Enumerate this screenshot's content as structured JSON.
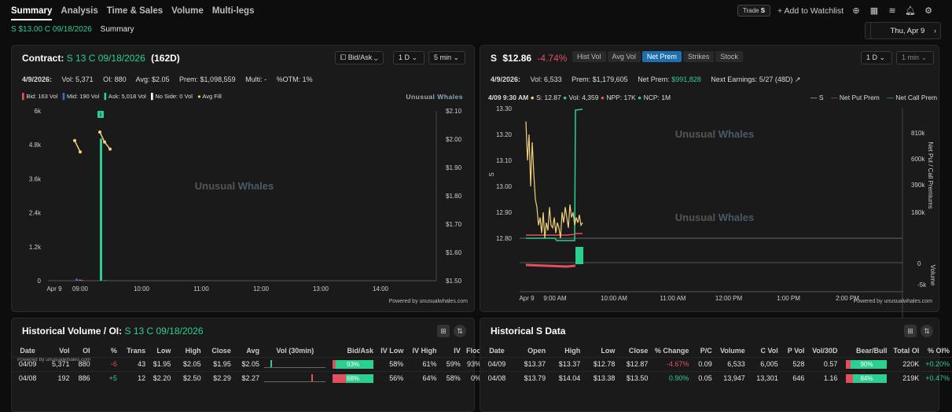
{
  "nav": {
    "tabs": [
      "Summary",
      "Analysis",
      "Time & Sales",
      "Volume",
      "Multi-legs"
    ],
    "trade_label": "Trade",
    "trade_ticker": "S",
    "watchlist": "+ Add to Watchlist"
  },
  "sub": {
    "ticker": "S $13.00 C 09/18/2026",
    "label": "Summary",
    "date": "Thu, Apr 9"
  },
  "contract": {
    "title_label": "Contract:",
    "title_contract": "S 13 C 09/18/2026",
    "title_dte": "(162D)",
    "selects": [
      "Bid/Ask",
      "1 D",
      "5 min"
    ],
    "stats": {
      "date": "4/9/2026:",
      "vol": "Vol: 5,371",
      "oi": "OI: 880",
      "avg": "Avg: $2.05",
      "prem": "Prem: $1,098,559",
      "multi": "Multi: -",
      "otm": "%OTM: 1%"
    },
    "legend": [
      "Bid: 163 Vol",
      "Mid: 190 Vol",
      "Ask: 5,018 Vol",
      "No Side: 0 Vol",
      "Avg Fill"
    ],
    "brand": "Unusual Whales",
    "powered": "Powered by unusualwhales.com",
    "chart": {
      "left_ticks": [
        "6k",
        "4.8k",
        "3.6k",
        "2.4k",
        "1.2k",
        "0"
      ],
      "right_ticks": [
        "$2.10",
        "$2.00",
        "$1.90",
        "$1.80",
        "$1.70",
        "$1.60",
        "$1.50"
      ],
      "x_ticks": [
        "Apr 9",
        "09:00",
        "10:00",
        "11:00",
        "12:00",
        "13:00",
        "14:00"
      ]
    },
    "marker": "i"
  },
  "stock": {
    "title_ticker": "S",
    "title_price": "$12.86",
    "title_change": "-4.74%",
    "buttons": [
      "Hist Vol",
      "Avg Vol",
      "Net Prem",
      "Strikes",
      "Stock"
    ],
    "selects": [
      "1 D",
      "1 min"
    ],
    "stats": {
      "date": "4/9/2026:",
      "vol": "Vol: 6,533",
      "prem": "Prem: $1,179,605",
      "netprem_label": "Net Prem:",
      "netprem": "$991,828",
      "earn": "Next Earnings: 5/27 (48D)"
    },
    "legend_info": [
      "4/09 9:30 AM",
      "S: 12.87",
      "Vol: 4,359",
      "NPP: 17K",
      "NCP: 1M"
    ],
    "legend": [
      "S",
      "Net Put Prem",
      "Net Call Prem"
    ],
    "brand": "Unusual Whales",
    "powered": "Powered by unusualwhales.com",
    "chart": {
      "left_ticks": [
        "13.30",
        "13.20",
        "13.10",
        "13.00",
        "12.90",
        "12.80"
      ],
      "left_label": "S",
      "right_ticks": [
        "810k",
        "600k",
        "390k",
        "180k"
      ],
      "right_label": "Net Put / Call Premiums",
      "vol_ticks": [
        "0",
        "-5k"
      ],
      "vol_label": "Volume",
      "x_ticks": [
        "Apr 9",
        "9:00 AM",
        "10:00 AM",
        "11:00 AM",
        "12:00 PM",
        "1:00 PM",
        "2:00 PM"
      ]
    }
  },
  "histvol": {
    "title_label": "Historical Volume / OI:",
    "title_contract": "S 13 C 09/18/2026",
    "cols": [
      "Date",
      "Vol",
      "OI",
      "%",
      "Trans",
      "Low",
      "High",
      "Close",
      "Avg",
      "Vol (30min)",
      "Bid/Ask",
      "IV Low",
      "IV High",
      "IV",
      "Floo"
    ],
    "powered": "Powered by unusualwhales.com",
    "rows": [
      {
        "date": "04/09",
        "vol": "5,371",
        "oi": "880",
        "pct": "-6",
        "trans": "43",
        "low": "$1.95",
        "high": "$2.05",
        "close": "$1.95",
        "avg": "$2.05",
        "ba": "93%",
        "ba_pct": 93,
        "ivl": "58%",
        "ivh": "61%",
        "iv": "59%",
        "floor": "93%"
      },
      {
        "date": "04/08",
        "vol": "192",
        "oi": "886",
        "pct": "+5",
        "trans": "12",
        "low": "$2.20",
        "high": "$2.50",
        "close": "$2.29",
        "avg": "$2.27",
        "ba": "68%",
        "ba_pct": 68,
        "ivl": "56%",
        "ivh": "64%",
        "iv": "58%",
        "floor": "0%"
      }
    ]
  },
  "histS": {
    "title": "Historical S Data",
    "cols": [
      "Date",
      "Open",
      "High",
      "Low",
      "Close",
      "% Change",
      "P/C",
      "Volume",
      "C Vol",
      "P Vol",
      "Vol/30D",
      "Bear/Bull",
      "Total OI",
      "% OI%"
    ],
    "rows": [
      {
        "date": "04/09",
        "open": "$13.37",
        "high": "$13.37",
        "low": "$12.78",
        "close": "$12.87",
        "chg": "-4.67%",
        "pc": "0.09",
        "vol": "6,533",
        "cvol": "6,005",
        "pvol": "528",
        "v30": "0.57",
        "bb": "90%",
        "bb_pct": 90,
        "toi": "220K",
        "oip": "+0.20%"
      },
      {
        "date": "04/08",
        "open": "$13.79",
        "high": "$14.04",
        "low": "$13.38",
        "close": "$13.50",
        "chg": "0.90%",
        "pc": "0.05",
        "vol": "13,947",
        "cvol": "13,301",
        "pvol": "646",
        "v30": "1.16",
        "bb": "84%",
        "bb_pct": 84,
        "toi": "219K",
        "oip": "+0.47%"
      }
    ]
  },
  "colors": {
    "green": "#2bcf8f",
    "red": "#e0505e",
    "blue": "#2f6fd6",
    "yellow": "#f2d27a",
    "accent": "#1e6fb0"
  }
}
